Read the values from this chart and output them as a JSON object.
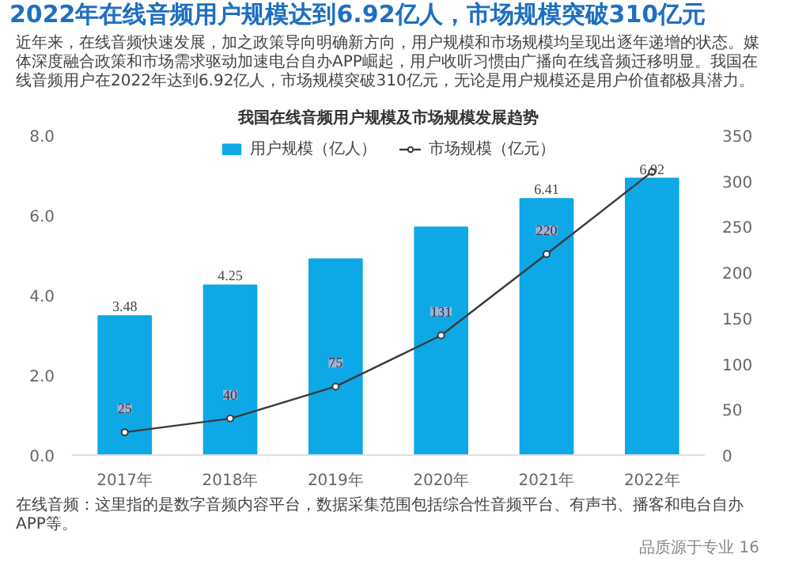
{
  "chart_data": {
    "type": "bar",
    "title": "2022年在线音频用户规模达到6.92亿人，市场规模突破310亿元",
    "subtitle": "我国在线音频用户规模及市场规模发展趋势",
    "categories": [
      "2017年",
      "2018年",
      "2019年",
      "2020年",
      "2021年",
      "2022年"
    ],
    "series": [
      {
        "name": "用户规模（亿人）",
        "color": "#0fa8e6",
        "values": [
          3.48,
          4.25,
          4.9,
          5.7,
          6.41,
          6.92
        ],
        "value_labels": [
          "3.48",
          "4.25",
          null,
          null,
          "6.41",
          "6.92"
        ]
      },
      {
        "name": "市场规模（亿元）",
        "type": "line",
        "axis": "y2",
        "color": "#3a3a3a",
        "values": [
          25,
          40,
          75,
          131,
          220,
          310
        ],
        "value_labels": [
          "25",
          "40",
          "75",
          "131",
          "220",
          null
        ]
      }
    ],
    "ylim": [
      0,
      8
    ],
    "yticks": [
      {
        "value": 0,
        "label": "0.0"
      },
      {
        "value": 2,
        "label": "2.0"
      },
      {
        "value": 4,
        "label": "4.0"
      },
      {
        "value": 6,
        "label": "6.0"
      },
      {
        "value": 8,
        "label": "8.0"
      }
    ],
    "y2lim": [
      0,
      350
    ],
    "y2ticks": [
      0,
      50,
      100,
      150,
      200,
      250,
      300,
      350
    ],
    "legend": "top",
    "marker": "circle",
    "annotations": [
      "近年来，在线音频快速发展，加之政策导向明确新方向，用户规模和市场规模均呈现出逐年递增的状态。媒体深度融合政策和市场需求驱动加速电台自办APP崛起，用户收听习惯由广播向在线音频迁移明显。我国在线音频用户在2022年达到6.92亿人，市场规模突破310亿元，无论是用户规模还是用户价值都极具潜力。",
      "在线音频：这里指的是数字音频内容平台，数据采集范围包括综合性音频平台、有声书、播客和电台自办APP等。",
      "品质源于专业",
      "16"
    ]
  }
}
